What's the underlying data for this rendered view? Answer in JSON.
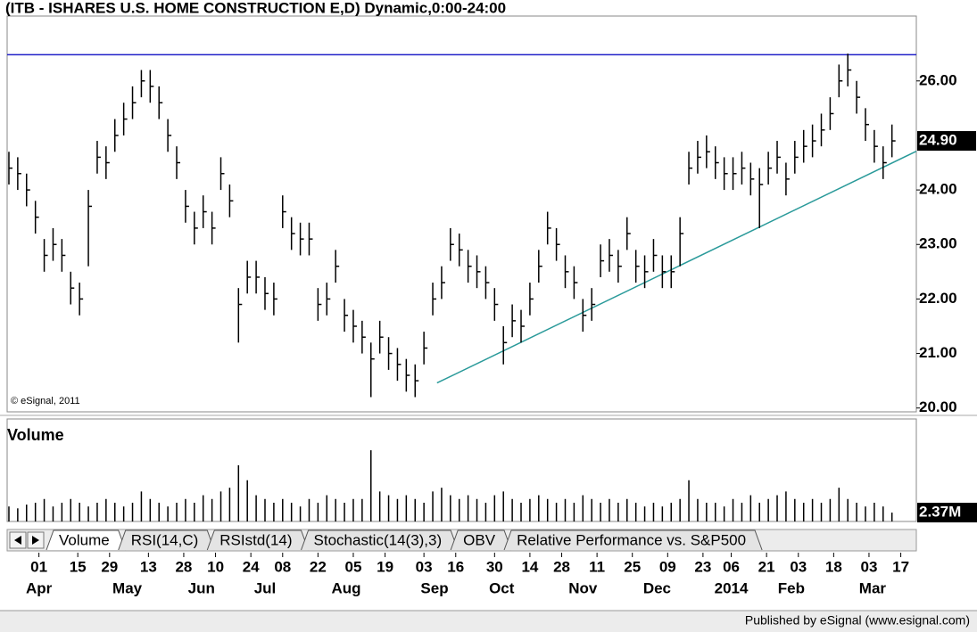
{
  "chart_data": {
    "type": "ohlc",
    "title": "(ITB - ISHARES U.S. HOME CONSTRUCTION E,D) Dynamic,0:00-24:00",
    "copyright": "© eSignal, 2011",
    "footer": "Published by eSignal (www.esignal.com)",
    "tabs": [
      "Volume",
      "RSI(14,C)",
      "RSIstd(14)",
      "Stochastic(14(3),3)",
      "OBV",
      "Relative Performance vs. S&P500"
    ],
    "ylim": [
      19.93,
      27.19
    ],
    "yticks": [
      {
        "value": 20,
        "label": "20.00"
      },
      {
        "value": 21,
        "label": "21.00"
      },
      {
        "value": 22,
        "label": "22.00"
      },
      {
        "value": 23,
        "label": "23.00"
      },
      {
        "value": 24,
        "label": "24.00"
      },
      {
        "value": 26,
        "label": "26.00"
      }
    ],
    "last_price": {
      "value": 24.9,
      "label": "24.90"
    },
    "hline": {
      "value": 26.48,
      "color": "#2020c8"
    },
    "trendline": {
      "x": [
        112.7,
        248.4
      ],
      "y": [
        20.46,
        24.71
      ],
      "color": "#2a9a9a"
    },
    "xlim": [
      -9,
      248.4
    ],
    "xticks": [
      {
        "value": 0,
        "label": "01"
      },
      {
        "value": 11,
        "label": "15"
      },
      {
        "value": 20,
        "label": "29"
      },
      {
        "value": 31,
        "label": "13"
      },
      {
        "value": 41,
        "label": "28"
      },
      {
        "value": 50,
        "label": "10"
      },
      {
        "value": 60,
        "label": "24"
      },
      {
        "value": 69,
        "label": "08"
      },
      {
        "value": 79,
        "label": "22"
      },
      {
        "value": 89,
        "label": "05"
      },
      {
        "value": 98,
        "label": "19"
      },
      {
        "value": 109,
        "label": "03"
      },
      {
        "value": 118,
        "label": "16"
      },
      {
        "value": 129,
        "label": "30"
      },
      {
        "value": 139,
        "label": "14"
      },
      {
        "value": 148,
        "label": "28"
      },
      {
        "value": 158,
        "label": "11"
      },
      {
        "value": 168,
        "label": "25"
      },
      {
        "value": 178,
        "label": "09"
      },
      {
        "value": 188,
        "label": "23"
      },
      {
        "value": 196,
        "label": "06"
      },
      {
        "value": 206,
        "label": "21"
      },
      {
        "value": 215,
        "label": "03"
      },
      {
        "value": 225,
        "label": "18"
      },
      {
        "value": 235,
        "label": "03"
      },
      {
        "value": 244,
        "label": "17"
      }
    ],
    "xmonths": [
      {
        "value": 0,
        "label": "Apr"
      },
      {
        "value": 25,
        "label": "May"
      },
      {
        "value": 46,
        "label": "Jun"
      },
      {
        "value": 64,
        "label": "Jul"
      },
      {
        "value": 87,
        "label": "Aug"
      },
      {
        "value": 112,
        "label": "Sep"
      },
      {
        "value": 131,
        "label": "Oct"
      },
      {
        "value": 154,
        "label": "Nov"
      },
      {
        "value": 175,
        "label": "Dec"
      },
      {
        "value": 196,
        "label": "2014"
      },
      {
        "value": 213,
        "label": "Feb"
      },
      {
        "value": 236,
        "label": "Mar"
      }
    ],
    "x": [
      -8.5,
      -6,
      -3.5,
      -1,
      1.5,
      4,
      6.5,
      9,
      11.5,
      14,
      16.5,
      19,
      21.5,
      24,
      26.5,
      29,
      31.5,
      34,
      36.5,
      39,
      41.5,
      44,
      46.5,
      49,
      51.5,
      54,
      56.5,
      59,
      61.5,
      64,
      66.5,
      69,
      71.5,
      74,
      76.5,
      79,
      81.5,
      84,
      86.5,
      89,
      91.5,
      94,
      96.5,
      99,
      101.5,
      104,
      106.5,
      109,
      111.5,
      114,
      116.5,
      119,
      121.5,
      124,
      126.5,
      129,
      131.5,
      134,
      136.5,
      139,
      141.5,
      144,
      146.5,
      149,
      151.5,
      154,
      156.5,
      159,
      161.5,
      164,
      166.5,
      169,
      171.5,
      174,
      176.5,
      179,
      181.5,
      184,
      186.5,
      189,
      191.5,
      194,
      196.5,
      199,
      201.5,
      204,
      206.5,
      209,
      211.5,
      214,
      216.5,
      219,
      221.5,
      224,
      226.5,
      229,
      231.5,
      234,
      236.5,
      239,
      241.5
    ],
    "color": "#000000",
    "high": [
      24.7,
      24.6,
      24.3,
      23.8,
      23.1,
      23.3,
      23.1,
      22.5,
      22.3,
      24.0,
      24.9,
      24.8,
      25.3,
      25.6,
      25.9,
      26.2,
      26.2,
      25.9,
      25.3,
      24.8,
      24.0,
      23.6,
      23.9,
      23.6,
      24.6,
      24.1,
      22.2,
      22.7,
      22.7,
      22.4,
      22.3,
      23.9,
      23.5,
      23.4,
      23.4,
      22.2,
      22.3,
      22.9,
      22.0,
      21.8,
      21.6,
      21.2,
      21.6,
      21.3,
      21.1,
      20.9,
      20.8,
      21.4,
      22.3,
      22.6,
      23.3,
      23.2,
      22.9,
      22.8,
      22.6,
      22.2,
      21.5,
      21.9,
      21.8,
      22.3,
      22.9,
      23.6,
      23.3,
      22.8,
      22.6,
      22.0,
      22.2,
      23.0,
      23.1,
      22.9,
      23.5,
      22.9,
      22.8,
      23.1,
      22.8,
      22.8,
      23.5,
      24.7,
      24.9,
      25.0,
      24.8,
      24.6,
      24.6,
      24.7,
      24.5,
      24.4,
      24.7,
      24.9,
      24.5,
      24.9,
      25.1,
      25.2,
      25.4,
      25.7,
      26.3,
      26.5,
      26.0,
      25.5,
      25.1,
      24.8,
      25.2
    ],
    "low": [
      24.1,
      24.0,
      23.7,
      23.2,
      22.5,
      22.7,
      22.5,
      21.9,
      21.7,
      22.6,
      24.3,
      24.2,
      24.7,
      25.0,
      25.3,
      25.7,
      25.6,
      25.3,
      24.7,
      24.2,
      23.4,
      23.0,
      23.3,
      23.0,
      24.0,
      23.5,
      21.2,
      22.1,
      22.1,
      21.8,
      21.7,
      23.3,
      22.9,
      22.8,
      22.8,
      21.6,
      21.7,
      22.3,
      21.4,
      21.2,
      21.0,
      20.2,
      21.0,
      20.7,
      20.5,
      20.3,
      20.2,
      20.8,
      21.7,
      22.0,
      22.7,
      22.6,
      22.3,
      22.2,
      22.0,
      21.6,
      20.8,
      21.3,
      21.2,
      21.7,
      22.3,
      23.0,
      22.7,
      22.2,
      22.0,
      21.4,
      21.6,
      22.4,
      22.5,
      22.3,
      22.9,
      22.3,
      22.2,
      22.5,
      22.2,
      22.2,
      22.6,
      24.1,
      24.3,
      24.4,
      24.2,
      24.0,
      24.0,
      24.1,
      23.9,
      23.3,
      24.1,
      24.3,
      23.9,
      24.3,
      24.5,
      24.6,
      24.8,
      25.1,
      25.7,
      25.9,
      25.4,
      24.9,
      24.5,
      24.2,
      24.6
    ],
    "close": [
      24.4,
      24.3,
      24.0,
      23.5,
      22.8,
      23.0,
      22.8,
      22.2,
      22.0,
      23.7,
      24.6,
      24.5,
      25.0,
      25.3,
      25.6,
      26.0,
      25.9,
      25.6,
      25.0,
      24.5,
      23.7,
      23.3,
      23.6,
      23.3,
      24.3,
      23.8,
      21.9,
      22.4,
      22.4,
      22.1,
      22.0,
      23.6,
      23.2,
      23.1,
      23.1,
      21.9,
      22.0,
      22.6,
      21.7,
      21.5,
      21.3,
      20.9,
      21.3,
      21.0,
      20.8,
      20.6,
      20.5,
      21.1,
      22.0,
      22.3,
      23.0,
      22.9,
      22.6,
      22.5,
      22.3,
      21.9,
      21.2,
      21.6,
      21.5,
      22.0,
      22.6,
      23.3,
      23.0,
      22.5,
      22.3,
      21.7,
      21.9,
      22.7,
      22.8,
      22.6,
      23.2,
      22.6,
      22.5,
      22.8,
      22.5,
      22.5,
      23.2,
      24.4,
      24.6,
      24.7,
      24.5,
      24.3,
      24.3,
      24.4,
      24.2,
      24.1,
      24.4,
      24.6,
      24.2,
      24.6,
      24.8,
      24.9,
      25.1,
      25.4,
      26.0,
      26.2,
      25.7,
      25.2,
      24.8,
      24.5,
      24.9
    ],
    "volume": {
      "title": "Volume",
      "ylim": [
        0,
        19.5
      ],
      "yticks": [
        {
          "value": 2.37,
          "label": "2.37M"
        }
      ],
      "values": [
        4,
        3.5,
        4.5,
        5,
        6,
        4,
        5,
        6,
        5,
        4,
        5,
        6,
        5,
        4,
        5,
        8,
        6,
        5,
        4,
        5,
        6,
        5,
        7,
        6,
        8,
        9,
        15,
        11,
        7,
        6,
        5,
        6,
        5,
        4,
        6,
        5,
        7,
        6,
        5,
        6,
        6,
        19,
        8,
        7,
        6,
        7,
        6,
        5,
        8,
        9,
        7,
        6,
        7,
        6,
        5,
        7,
        8,
        6,
        5,
        6,
        7,
        6,
        5,
        6,
        5,
        7,
        6,
        5,
        6,
        5,
        6,
        5,
        4,
        5,
        4,
        5,
        6,
        11,
        6,
        5,
        5,
        4,
        6,
        5,
        7,
        5,
        6,
        7,
        8,
        6,
        5,
        6,
        5,
        6,
        9,
        6,
        5,
        4,
        5,
        4,
        2.37
      ]
    }
  }
}
